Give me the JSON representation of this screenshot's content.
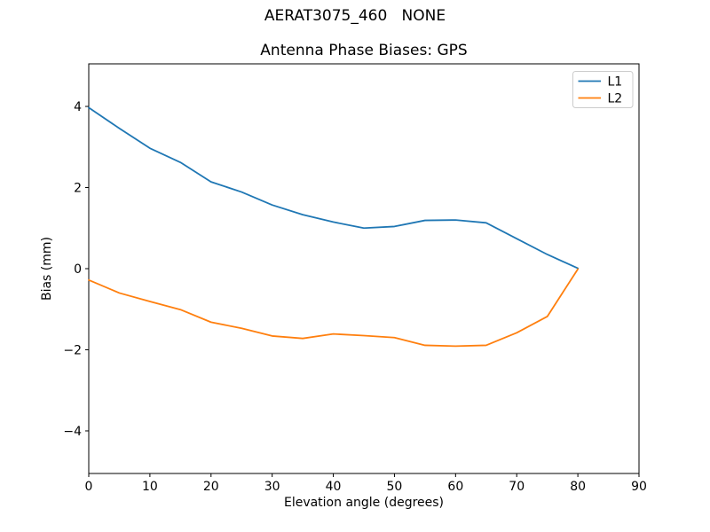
{
  "figure": {
    "suptitle": "AERAT3075_460   NONE",
    "background": "#ffffff"
  },
  "chart_data": {
    "type": "line",
    "title": "Antenna Phase Biases: GPS",
    "xlabel": "Elevation angle (degrees)",
    "ylabel": "Bias (mm)",
    "xlim": [
      0,
      90
    ],
    "ylim": [
      -5.05,
      5.05
    ],
    "grid": false,
    "xticks": [
      {
        "value": 0,
        "label": "0"
      },
      {
        "value": 10,
        "label": "10"
      },
      {
        "value": 20,
        "label": "20"
      },
      {
        "value": 30,
        "label": "30"
      },
      {
        "value": 40,
        "label": "40"
      },
      {
        "value": 50,
        "label": "50"
      },
      {
        "value": 60,
        "label": "60"
      },
      {
        "value": 70,
        "label": "70"
      },
      {
        "value": 80,
        "label": "80"
      },
      {
        "value": 90,
        "label": "90"
      }
    ],
    "yticks": [
      {
        "value": -4,
        "label": "−4"
      },
      {
        "value": -2,
        "label": "−2"
      },
      {
        "value": 0,
        "label": "0"
      },
      {
        "value": 2,
        "label": "2"
      },
      {
        "value": 4,
        "label": "4"
      }
    ],
    "x": [
      0,
      5,
      10,
      15,
      20,
      25,
      30,
      35,
      40,
      45,
      50,
      55,
      60,
      65,
      70,
      75,
      80
    ],
    "series": [
      {
        "name": "L1",
        "color": "#1f77b4",
        "values": [
          3.97,
          3.46,
          2.97,
          2.62,
          2.14,
          1.89,
          1.57,
          1.33,
          1.15,
          1.0,
          1.04,
          1.19,
          1.2,
          1.13,
          0.74,
          0.35,
          0.01
        ]
      },
      {
        "name": "L2",
        "color": "#ff7f0e",
        "values": [
          -0.28,
          -0.6,
          -0.81,
          -1.01,
          -1.32,
          -1.47,
          -1.66,
          -1.72,
          -1.61,
          -1.65,
          -1.7,
          -1.89,
          -1.91,
          -1.89,
          -1.58,
          -1.18,
          -0.01
        ]
      }
    ],
    "legend": {
      "position": "upper right",
      "edge_color": "#cccccc",
      "entries": [
        "L1",
        "L2"
      ]
    }
  }
}
